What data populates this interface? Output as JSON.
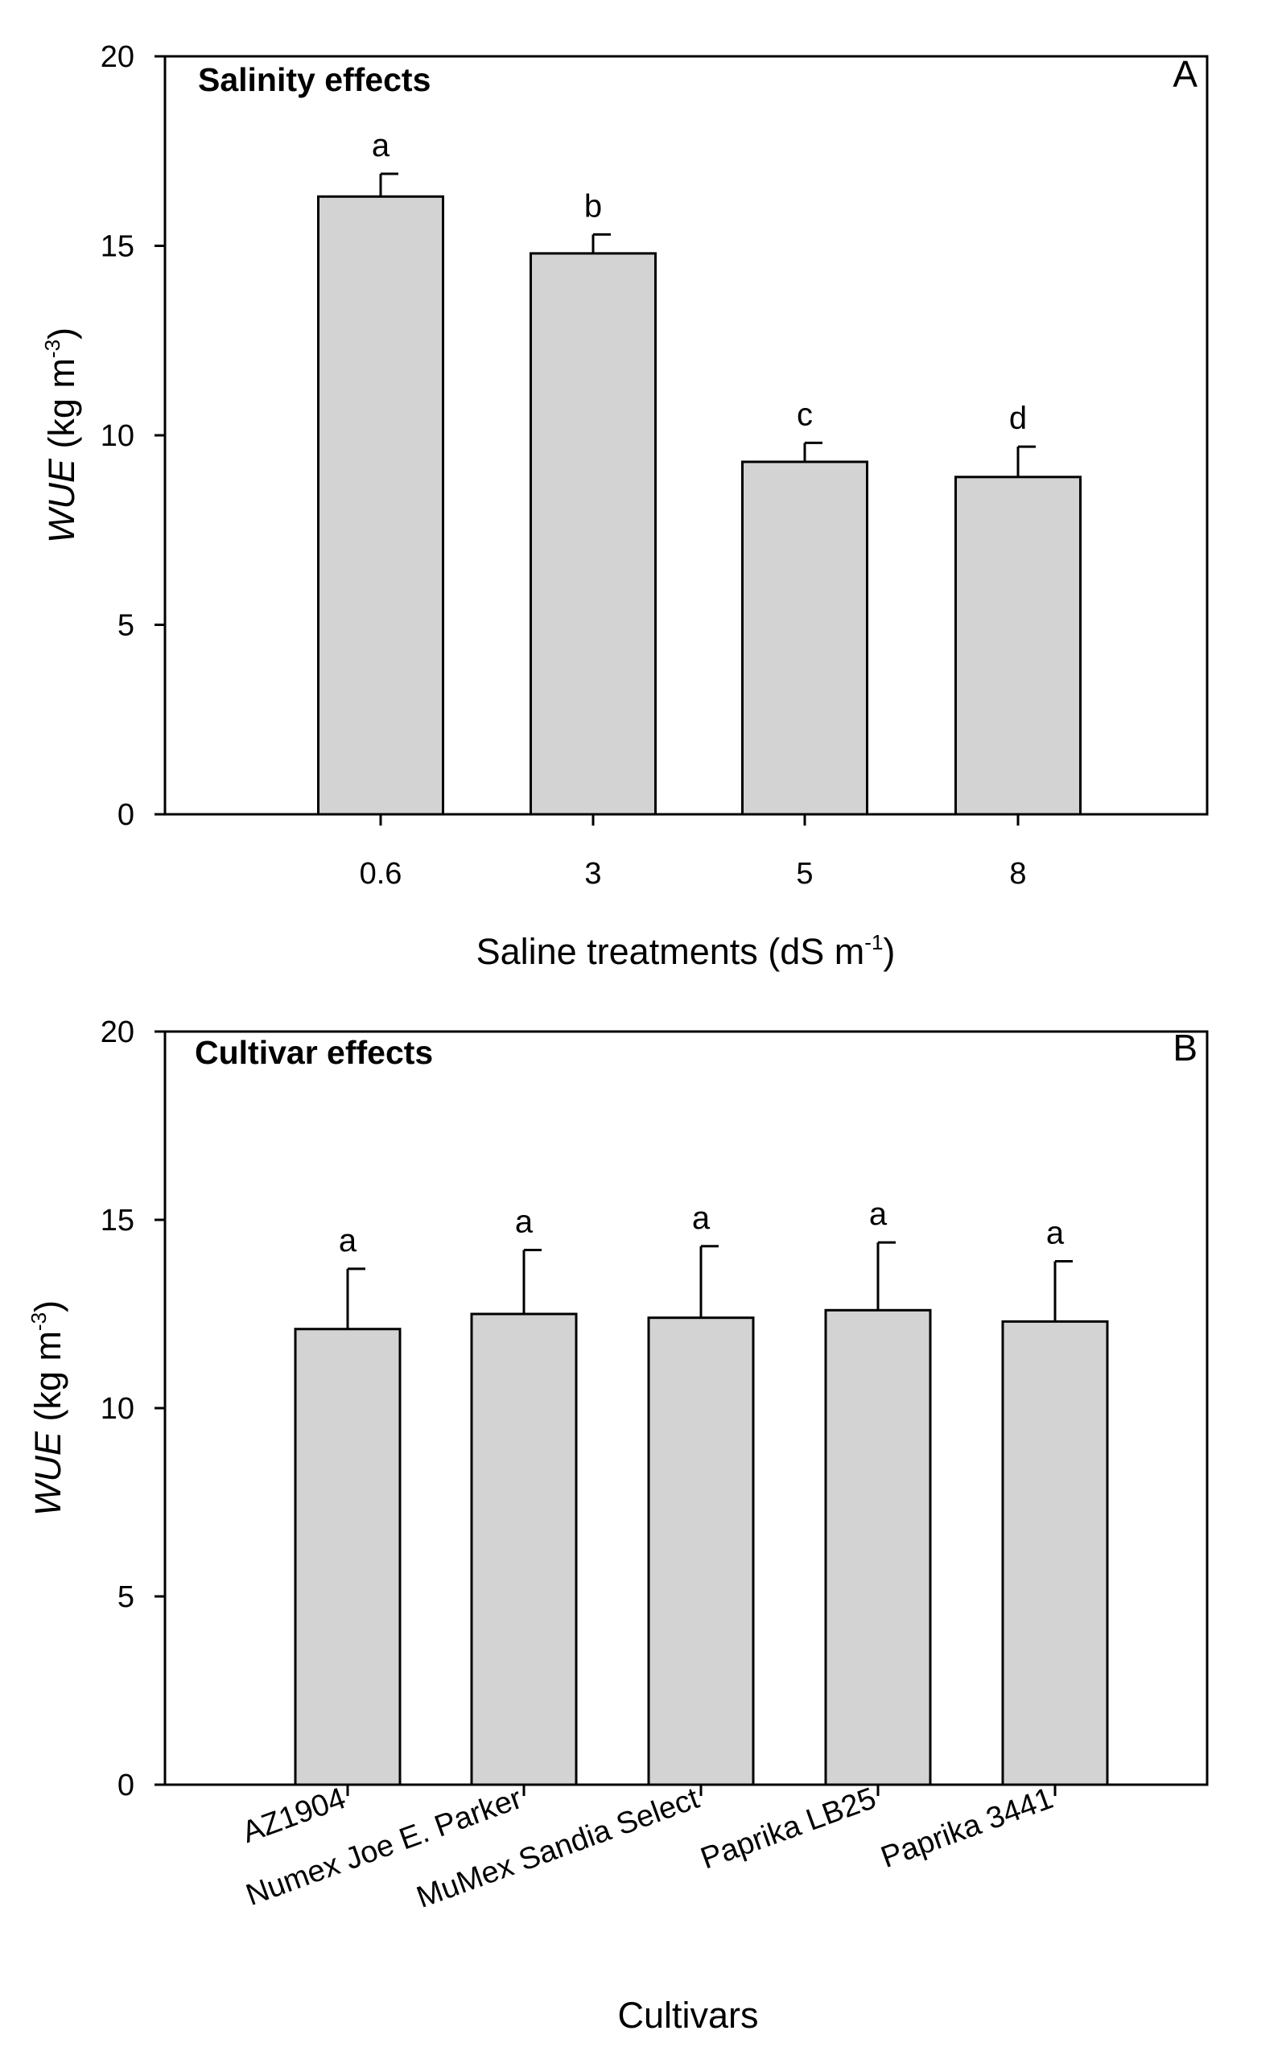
{
  "chart_data": [
    {
      "type": "bar",
      "panel_letter": "A",
      "title": "Salinity effects",
      "xlabel": "Saline treatments (dS m",
      "xlabel_sup": "-1",
      "xlabel_tail": ")",
      "ylabel_italic": "WUE",
      "ylabel": " (kg m",
      "ylabel_sup": "-3",
      "ylabel_tail": ")",
      "ylim": [
        0,
        20
      ],
      "yticks": [
        "0",
        "5",
        "10",
        "15",
        "20"
      ],
      "categories": [
        "0.6",
        "3",
        "5",
        "8"
      ],
      "values": [
        16.3,
        14.8,
        9.3,
        8.9
      ],
      "errors": [
        0.6,
        0.5,
        0.5,
        0.8
      ],
      "significance": [
        "a",
        "b",
        "c",
        "d"
      ],
      "bar_color": "#d3d3d3"
    },
    {
      "type": "bar",
      "panel_letter": "B",
      "title": "Cultivar effects",
      "xlabel": "Cultivars",
      "ylabel_italic": "WUE",
      "ylabel": " (kg m",
      "ylabel_sup": "-3",
      "ylabel_tail": ")",
      "ylim": [
        0,
        20
      ],
      "yticks": [
        "0",
        "5",
        "10",
        "15",
        "20"
      ],
      "categories": [
        "AZ1904",
        "Numex Joe E. Parker",
        "MuMex Sandia Select",
        "Paprika LB25",
        "Paprika 3441"
      ],
      "values": [
        12.1,
        12.5,
        12.4,
        12.6,
        12.3
      ],
      "errors": [
        1.6,
        1.7,
        1.9,
        1.8,
        1.6
      ],
      "significance": [
        "a",
        "a",
        "a",
        "a",
        "a"
      ],
      "bar_color": "#d3d3d3"
    }
  ]
}
